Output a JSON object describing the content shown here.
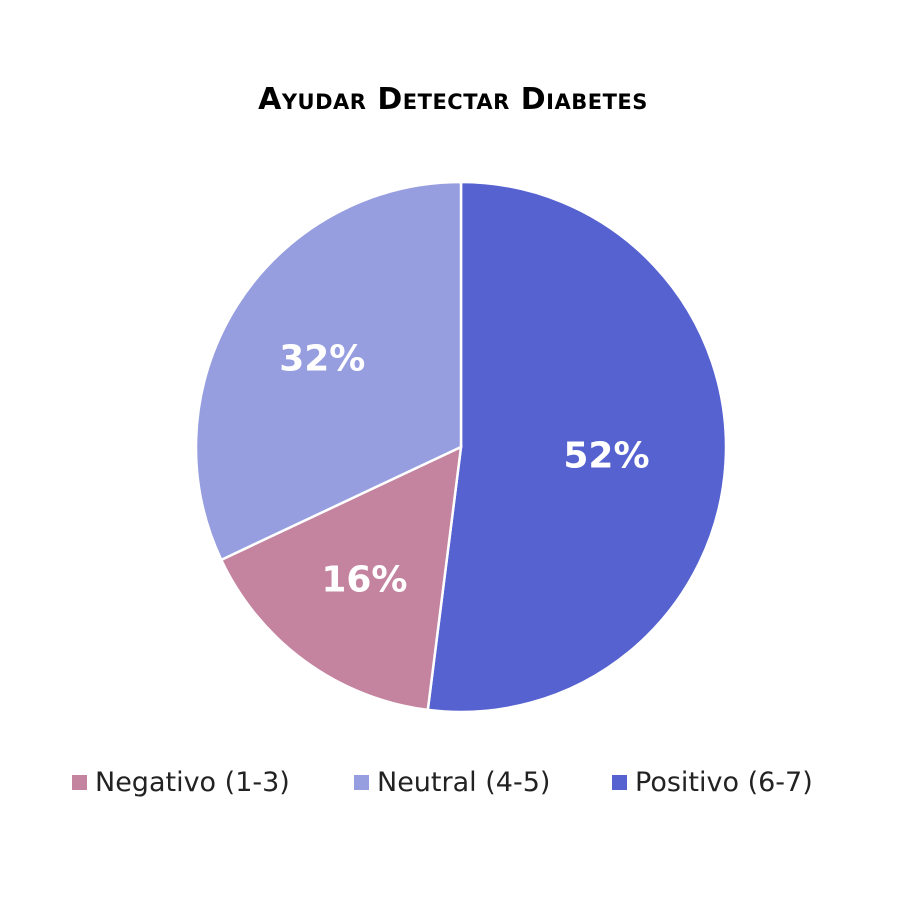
{
  "chart_data": {
    "type": "pie",
    "title": "Ayudar Detectar Diabetes",
    "categories": [
      "Negativo (1-3)",
      "Neutral (4-5)",
      "Positivo (6-7)"
    ],
    "values": [
      16,
      32,
      52
    ],
    "value_labels": [
      "16%",
      "32%",
      "52%"
    ],
    "colors": [
      "#c4839f",
      "#969ee0",
      "#5562cf"
    ],
    "legend_position": "bottom"
  }
}
